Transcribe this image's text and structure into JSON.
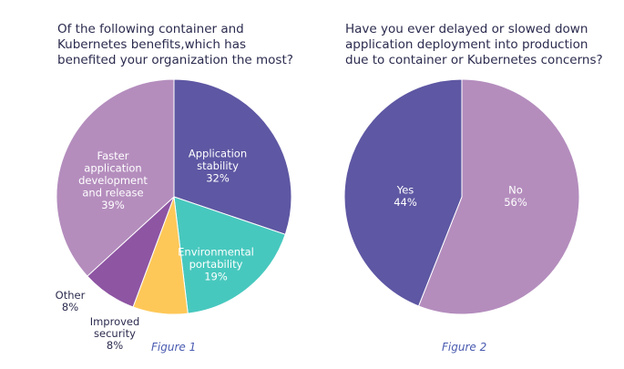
{
  "chart_data": [
    {
      "type": "pie",
      "title_lines": [
        "Of the following container and",
        "Kubernetes benefits,which has",
        "benefited your organization the most?"
      ],
      "caption": "Figure 1",
      "slices": [
        {
          "label_lines": [
            "Application",
            "stability"
          ],
          "value": 32,
          "value_label": "32%",
          "color": "#5e57a3"
        },
        {
          "label_lines": [
            "Environmental",
            "portability"
          ],
          "value": 19,
          "value_label": "19%",
          "color": "#47c8be"
        },
        {
          "label_lines": [
            "Improved",
            "security"
          ],
          "value": 8,
          "value_label": "8%",
          "color": "#fec858"
        },
        {
          "label_lines": [
            "Other"
          ],
          "value": 8,
          "value_label": "8%",
          "color": "#8e55a3"
        },
        {
          "label_lines": [
            "Faster",
            "application",
            "development",
            "and release"
          ],
          "value": 39,
          "value_label": "39%",
          "color": "#b48dbd"
        }
      ]
    },
    {
      "type": "pie",
      "title_lines": [
        "Have you ever delayed or slowed down",
        "application deployment into production",
        "due to container or Kubernetes concerns?"
      ],
      "caption": "Figure 2",
      "slices": [
        {
          "label_lines": [
            "No"
          ],
          "value": 56,
          "value_label": "56%",
          "color": "#b48dbd"
        },
        {
          "label_lines": [
            "Yes"
          ],
          "value": 44,
          "value_label": "44%",
          "color": "#5e57a3"
        }
      ]
    }
  ]
}
